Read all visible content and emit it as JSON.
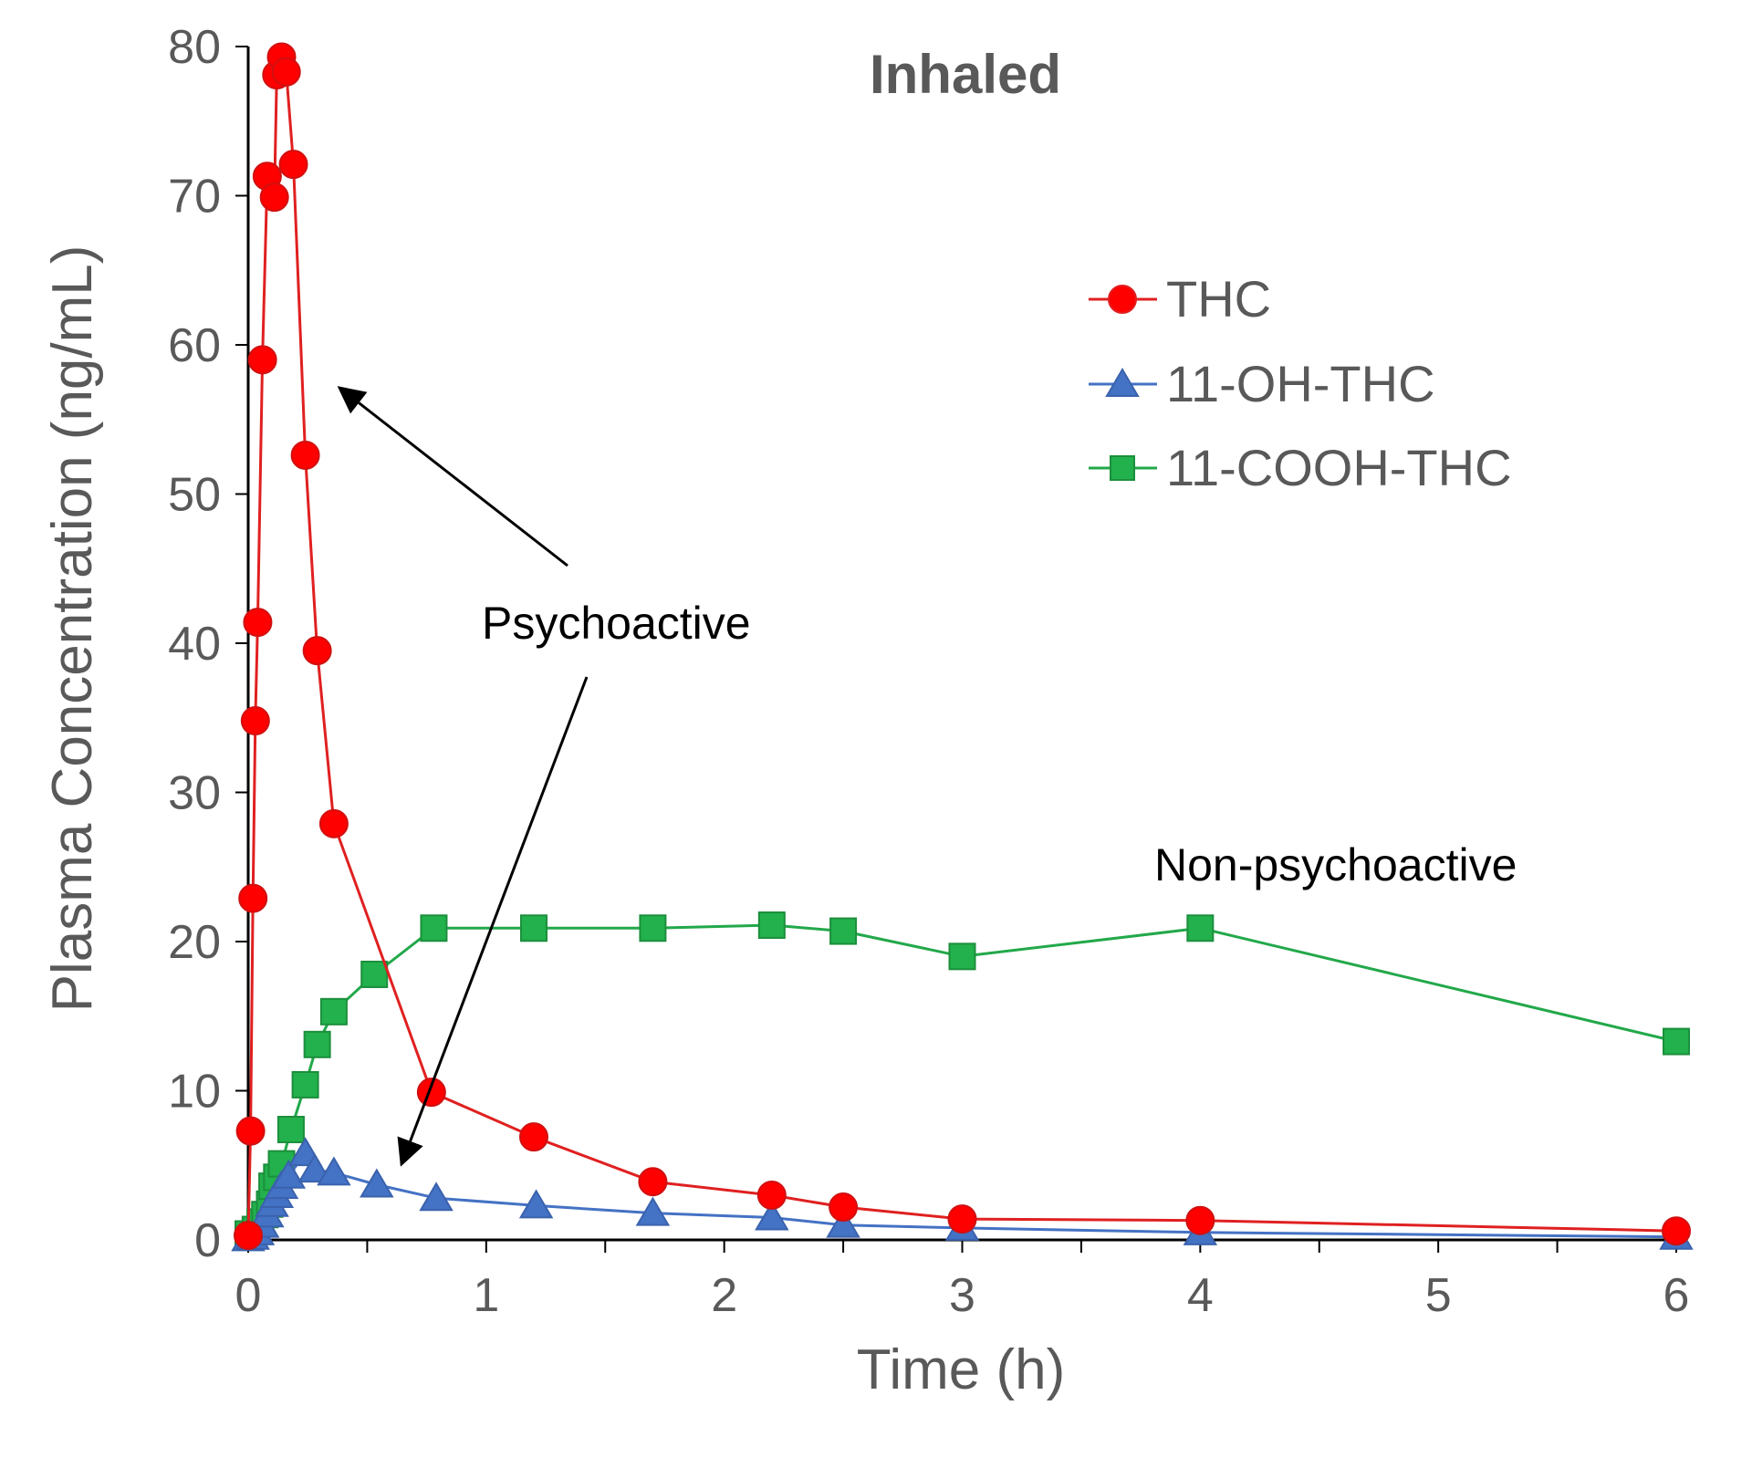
{
  "chart_data": {
    "type": "line",
    "title": "Inhaled",
    "xlabel": "Time (h)",
    "ylabel": "Plasma Concentration (ng/mL)",
    "xlim": [
      0,
      6
    ],
    "ylim": [
      0,
      80
    ],
    "x_ticks": [
      0,
      1,
      2,
      3,
      4,
      5,
      6
    ],
    "x_minor_step": 0.5,
    "y_ticks": [
      0,
      10,
      20,
      30,
      40,
      50,
      60,
      70,
      80
    ],
    "grid": false,
    "legend_position": "top-right",
    "series": [
      {
        "name": "THC",
        "color": "#e02020",
        "marker": "circle",
        "points": [
          [
            0.0,
            0.3
          ],
          [
            0.01,
            7.3
          ],
          [
            0.02,
            22.9
          ],
          [
            0.03,
            34.8
          ],
          [
            0.04,
            41.4
          ],
          [
            0.06,
            59.0
          ],
          [
            0.08,
            71.3
          ],
          [
            0.11,
            69.9
          ],
          [
            0.12,
            78.1
          ],
          [
            0.14,
            79.3
          ],
          [
            0.16,
            78.3
          ],
          [
            0.19,
            72.1
          ],
          [
            0.24,
            52.6
          ],
          [
            0.29,
            39.5
          ],
          [
            0.36,
            27.9
          ],
          [
            0.77,
            9.9
          ],
          [
            1.2,
            6.9
          ],
          [
            1.7,
            3.9
          ],
          [
            2.2,
            3.0
          ],
          [
            2.5,
            2.2
          ],
          [
            3.0,
            1.4
          ],
          [
            4.0,
            1.3
          ],
          [
            6.0,
            0.6
          ]
        ]
      },
      {
        "name": "11-OH-THC",
        "color": "#4472c4",
        "marker": "triangle",
        "points": [
          [
            0.0,
            0.1
          ],
          [
            0.02,
            0.2
          ],
          [
            0.04,
            0.5
          ],
          [
            0.06,
            1.0
          ],
          [
            0.08,
            1.7
          ],
          [
            0.1,
            2.4
          ],
          [
            0.12,
            3.0
          ],
          [
            0.14,
            3.6
          ],
          [
            0.17,
            4.3
          ],
          [
            0.24,
            5.8
          ],
          [
            0.28,
            4.7
          ],
          [
            0.36,
            4.5
          ],
          [
            0.54,
            3.7
          ],
          [
            0.79,
            2.8
          ],
          [
            1.21,
            2.3
          ],
          [
            1.7,
            1.8
          ],
          [
            2.2,
            1.5
          ],
          [
            2.5,
            1.0
          ],
          [
            3.0,
            0.8
          ],
          [
            4.0,
            0.5
          ],
          [
            6.0,
            0.2
          ]
        ]
      },
      {
        "name": "11-COOH-THC",
        "color": "#22a84a",
        "marker": "square",
        "points": [
          [
            0.0,
            0.4
          ],
          [
            0.03,
            0.7
          ],
          [
            0.05,
            1.2
          ],
          [
            0.07,
            1.7
          ],
          [
            0.09,
            2.4
          ],
          [
            0.1,
            3.6
          ],
          [
            0.12,
            4.2
          ],
          [
            0.14,
            5.1
          ],
          [
            0.18,
            7.4
          ],
          [
            0.24,
            10.4
          ],
          [
            0.29,
            13.1
          ],
          [
            0.36,
            15.3
          ],
          [
            0.53,
            17.8
          ],
          [
            0.78,
            20.9
          ],
          [
            1.2,
            20.9
          ],
          [
            1.7,
            20.9
          ],
          [
            2.2,
            21.1
          ],
          [
            2.5,
            20.7
          ],
          [
            3.0,
            19.0
          ],
          [
            4.0,
            20.9
          ],
          [
            6.0,
            13.3
          ]
        ]
      }
    ],
    "annotations": [
      {
        "text": "Psychoactive"
      },
      {
        "text": "Non-psychoactive"
      }
    ]
  }
}
